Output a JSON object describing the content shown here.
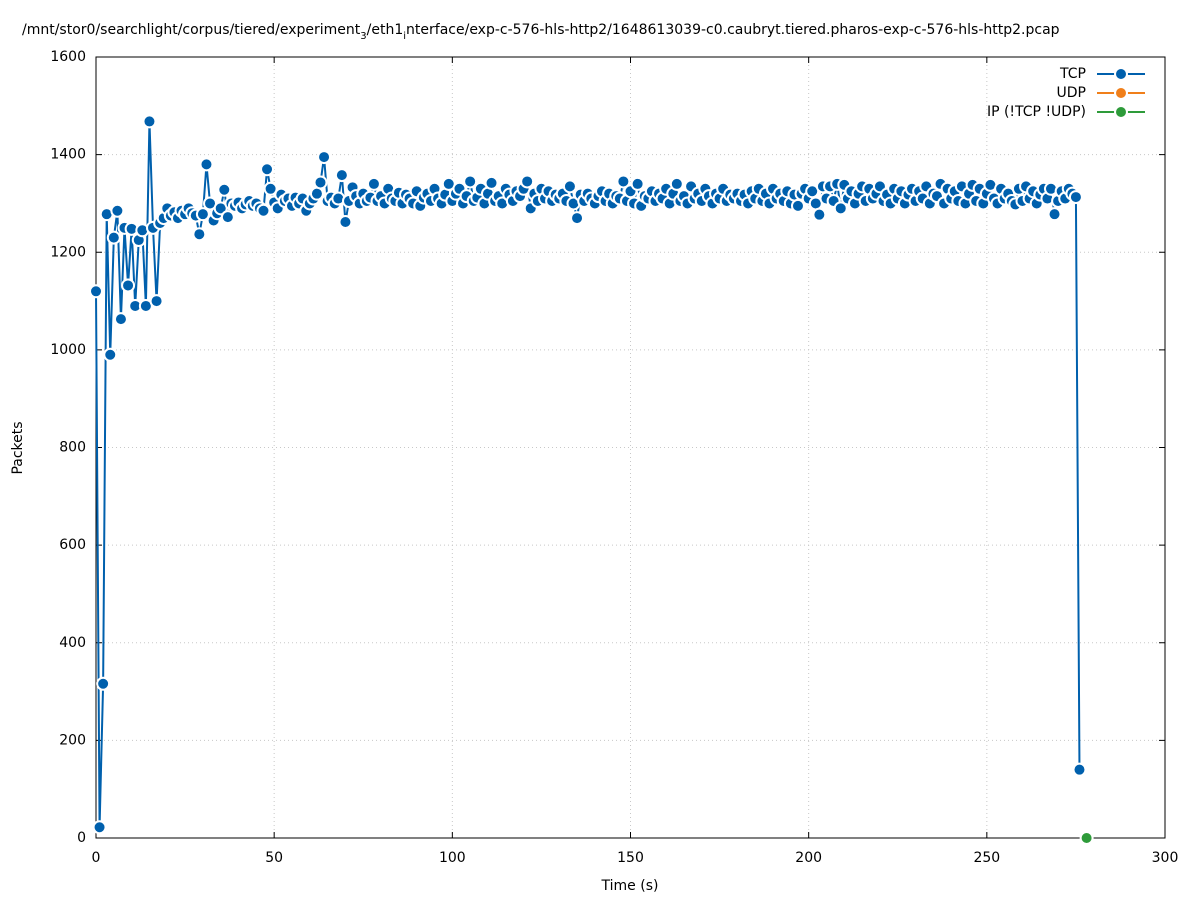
{
  "chart_data": {
    "type": "line",
    "title": [
      "/mnt/stor0/searchlight/corpus/tiered/experiment",
      "3",
      "/eth1",
      "i",
      "nterface/exp-c-576-hls-http2/1648613039-c0.caubryt.tiered.pharos-exp-c-576-hls-http2.pcap"
    ],
    "x_label": "Time (s)",
    "y_label": "Packets",
    "xlim": [
      0,
      300
    ],
    "xticks": [
      0,
      50,
      100,
      150,
      200,
      250,
      300
    ],
    "ylim": [
      0,
      1600
    ],
    "yticks": [
      0,
      200,
      400,
      600,
      800,
      1000,
      1200,
      1400,
      1600
    ],
    "grid": true,
    "legend": "top-right",
    "series": [
      {
        "name": "TCP",
        "color": "#0060ad",
        "x": [
          0,
          1,
          2,
          3,
          4,
          5,
          6,
          7,
          8,
          9,
          10,
          11,
          12,
          13,
          14,
          15,
          16,
          17,
          18,
          19,
          20,
          21,
          22,
          23,
          24,
          25,
          26,
          27,
          28,
          29,
          30,
          31,
          32,
          33,
          34,
          35,
          36,
          37,
          38,
          39,
          40,
          41,
          42,
          43,
          44,
          45,
          46,
          47,
          48,
          49,
          50,
          51,
          52,
          53,
          54,
          55,
          56,
          57,
          58,
          59,
          60,
          61,
          62,
          63,
          64,
          65,
          66,
          67,
          68,
          69,
          70,
          71,
          72,
          73,
          74,
          75,
          76,
          77,
          78,
          79,
          80,
          81,
          82,
          83,
          84,
          85,
          86,
          87,
          88,
          89,
          90,
          91,
          92,
          93,
          94,
          95,
          96,
          97,
          98,
          99,
          100,
          101,
          102,
          103,
          104,
          105,
          106,
          107,
          108,
          109,
          110,
          111,
          112,
          113,
          114,
          115,
          116,
          117,
          118,
          119,
          120,
          121,
          122,
          123,
          124,
          125,
          126,
          127,
          128,
          129,
          130,
          131,
          132,
          133,
          134,
          135,
          136,
          137,
          138,
          139,
          140,
          141,
          142,
          143,
          144,
          145,
          146,
          147,
          148,
          149,
          150,
          151,
          152,
          153,
          154,
          155,
          156,
          157,
          158,
          159,
          160,
          161,
          162,
          163,
          164,
          165,
          166,
          167,
          168,
          169,
          170,
          171,
          172,
          173,
          174,
          175,
          176,
          177,
          178,
          179,
          180,
          181,
          182,
          183,
          184,
          185,
          186,
          187,
          188,
          189,
          190,
          191,
          192,
          193,
          194,
          195,
          196,
          197,
          198,
          199,
          200,
          201,
          202,
          203,
          204,
          205,
          206,
          207,
          208,
          209,
          210,
          211,
          212,
          213,
          214,
          215,
          216,
          217,
          218,
          219,
          220,
          221,
          222,
          223,
          224,
          225,
          226,
          227,
          228,
          229,
          230,
          231,
          232,
          233,
          234,
          235,
          236,
          237,
          238,
          239,
          240,
          241,
          242,
          243,
          244,
          245,
          246,
          247,
          248,
          249,
          250,
          251,
          252,
          253,
          254,
          255,
          256,
          257,
          258,
          259,
          260,
          261,
          262,
          263,
          264,
          265,
          266,
          267,
          268,
          269,
          270,
          271,
          272,
          273,
          274,
          275,
          276
        ],
        "values": [
          1120,
          22,
          316,
          1278,
          990,
          1230,
          1285,
          1063,
          1250,
          1132,
          1248,
          1090,
          1225,
          1245,
          1090,
          1468,
          1250,
          1100,
          1260,
          1270,
          1290,
          1275,
          1282,
          1270,
          1285,
          1278,
          1290,
          1280,
          1275,
          1237,
          1278,
          1380,
          1300,
          1265,
          1280,
          1290,
          1328,
          1272,
          1300,
          1295,
          1302,
          1290,
          1298,
          1305,
          1295,
          1300,
          1290,
          1285,
          1370,
          1330,
          1302,
          1290,
          1318,
          1305,
          1310,
          1295,
          1312,
          1300,
          1310,
          1285,
          1300,
          1310,
          1320,
          1343,
          1395,
          1305,
          1312,
          1300,
          1310,
          1358,
          1262,
          1305,
          1333,
          1315,
          1300,
          1320,
          1305,
          1312,
          1340,
          1305,
          1315,
          1300,
          1330,
          1310,
          1305,
          1322,
          1300,
          1318,
          1310,
          1300,
          1325,
          1295,
          1312,
          1320,
          1305,
          1330,
          1310,
          1300,
          1318,
          1340,
          1305,
          1320,
          1330,
          1300,
          1315,
          1345,
          1305,
          1312,
          1330,
          1300,
          1320,
          1342,
          1305,
          1315,
          1300,
          1330,
          1318,
          1305,
          1325,
          1315,
          1330,
          1345,
          1290,
          1320,
          1305,
          1330,
          1310,
          1325,
          1305,
          1318,
          1310,
          1320,
          1305,
          1335,
          1300,
          1270,
          1318,
          1305,
          1320,
          1310,
          1300,
          1315,
          1325,
          1305,
          1320,
          1300,
          1315,
          1310,
          1345,
          1305,
          1325,
          1300,
          1340,
          1295,
          1315,
          1310,
          1325,
          1305,
          1320,
          1310,
          1330,
          1300,
          1320,
          1340,
          1305,
          1315,
          1300,
          1335,
          1310,
          1320,
          1305,
          1330,
          1315,
          1300,
          1320,
          1310,
          1330,
          1305,
          1318,
          1310,
          1320,
          1305,
          1318,
          1300,
          1325,
          1310,
          1330,
          1305,
          1320,
          1300,
          1330,
          1310,
          1320,
          1305,
          1325,
          1300,
          1318,
          1295,
          1320,
          1330,
          1310,
          1325,
          1300,
          1277,
          1335,
          1310,
          1335,
          1305,
          1340,
          1290,
          1338,
          1310,
          1325,
          1300,
          1320,
          1335,
          1305,
          1330,
          1310,
          1320,
          1335,
          1305,
          1318,
          1300,
          1330,
          1310,
          1325,
          1300,
          1318,
          1330,
          1305,
          1325,
          1310,
          1335,
          1300,
          1320,
          1315,
          1340,
          1300,
          1330,
          1310,
          1325,
          1305,
          1335,
          1300,
          1320,
          1338,
          1305,
          1330,
          1300,
          1320,
          1338,
          1310,
          1300,
          1330,
          1310,
          1320,
          1305,
          1298,
          1330,
          1305,
          1335,
          1310,
          1325,
          1300,
          1318,
          1330,
          1310,
          1330,
          1278,
          1305,
          1325,
          1310,
          1330,
          1320,
          1313,
          140
        ]
      },
      {
        "name": "UDP",
        "color": "#f07f1a",
        "x": [],
        "values": []
      },
      {
        "name": "IP (!TCP  !UDP)",
        "color": "#2e9b3a",
        "x": [
          278
        ],
        "values": [
          0
        ]
      }
    ]
  }
}
